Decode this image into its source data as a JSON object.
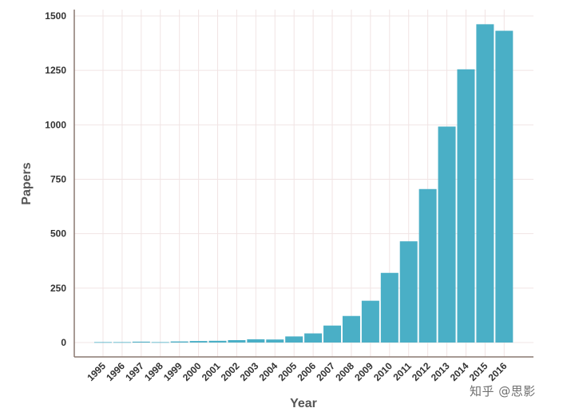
{
  "chart_data": {
    "type": "bar",
    "title": "",
    "xlabel": "Year",
    "ylabel": "Papers",
    "categories": [
      "1995",
      "1996",
      "1997",
      "1998",
      "1999",
      "2000",
      "2001",
      "2002",
      "2003",
      "2004",
      "2005",
      "2006",
      "2007",
      "2008",
      "2009",
      "2010",
      "2011",
      "2012",
      "2013",
      "2014",
      "2015",
      "2016"
    ],
    "values": [
      2,
      2,
      4,
      2,
      5,
      7,
      8,
      11,
      15,
      14,
      28,
      42,
      78,
      122,
      192,
      320,
      465,
      705,
      992,
      1255,
      1462,
      1432
    ],
    "ylim": [
      0,
      1500
    ],
    "yticks": [
      0,
      250,
      500,
      750,
      1000,
      1250,
      1500
    ],
    "ytick_labels": [
      "0",
      "250",
      "500",
      "750",
      "1000",
      "1250",
      "1500"
    ],
    "grid": true,
    "colors": {
      "bar": "#4aafc6",
      "grid": "#f1e4e4",
      "axis": "#8a7870",
      "background": "#ffffff"
    }
  },
  "watermark": "知乎 @思影"
}
